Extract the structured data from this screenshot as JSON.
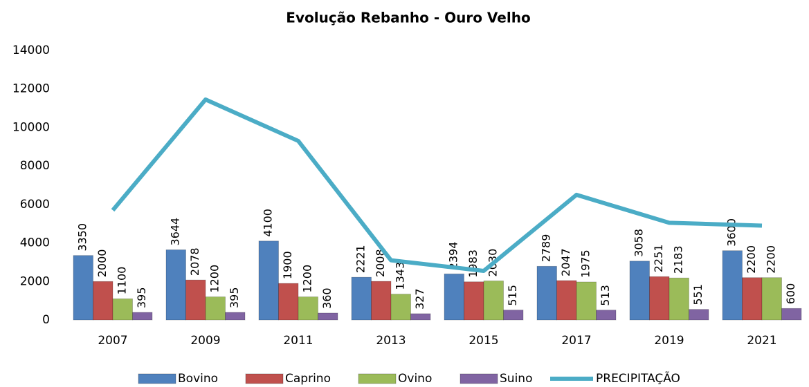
{
  "chart_data": {
    "type": "bar",
    "title": "Evolução Rebanho - Ouro Velho",
    "categories": [
      "2007",
      "2009",
      "2011",
      "2013",
      "2015",
      "2017",
      "2019",
      "2021"
    ],
    "series": [
      {
        "name": "Bovino",
        "color": "#4f81bd",
        "values": [
          3350,
          3644,
          4100,
          2221,
          2394,
          2789,
          3058,
          3600
        ]
      },
      {
        "name": "Caprino",
        "color": "#c0504d",
        "values": [
          2000,
          2078,
          1900,
          2008,
          1983,
          2047,
          2251,
          2200
        ]
      },
      {
        "name": "Ovino",
        "color": "#9bbb59",
        "values": [
          1100,
          1200,
          1200,
          1343,
          2030,
          1975,
          2183,
          2200
        ]
      },
      {
        "name": "Suino",
        "color": "#8064a2",
        "values": [
          395,
          395,
          360,
          327,
          515,
          513,
          551,
          600
        ]
      },
      {
        "name": "PRECIPITAÇÃO",
        "type": "line",
        "color": "#4bacc6",
        "values": [
          5700,
          11450,
          9300,
          3100,
          2550,
          6500,
          5050,
          4900
        ]
      }
    ],
    "ylim": [
      0,
      14000
    ],
    "yticks": [
      0,
      2000,
      4000,
      6000,
      8000,
      10000,
      12000,
      14000
    ],
    "legend": "bottom"
  }
}
